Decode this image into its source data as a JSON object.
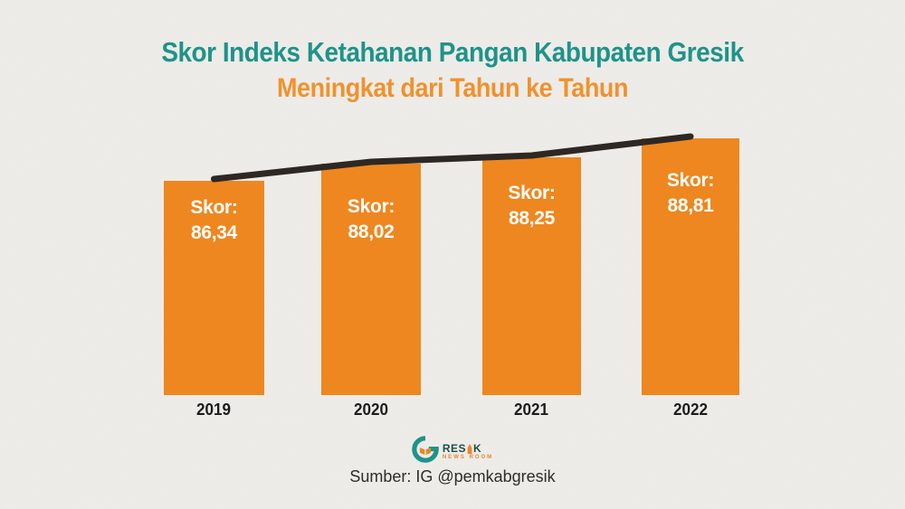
{
  "title": {
    "line1": "Skor Indeks Ketahanan Pangan Kabupaten Gresik",
    "line2": "Meningkat dari Tahun ke Tahun"
  },
  "chart_data": {
    "type": "bar",
    "categories": [
      "2019",
      "2020",
      "2021",
      "2022"
    ],
    "values": [
      86.34,
      88.02,
      88.25,
      88.81
    ],
    "value_labels": [
      "86,34",
      "88,02",
      "88,25",
      "88,81"
    ],
    "value_prefix": "Skor:",
    "title": "Skor Indeks Ketahanan Pangan Kabupaten Gresik Meningkat dari Tahun ke Tahun",
    "xlabel": "",
    "ylabel": "",
    "legend": false,
    "grid": false,
    "ylim_visual_note": "bar heights not to linear scale; infographic style",
    "overlay_line": {
      "type": "line",
      "description": "black trend line connecting bar tops",
      "values": [
        86.34,
        88.02,
        88.25,
        88.81
      ]
    },
    "bar_color": "#EE871F",
    "line_color": "#2D2824",
    "bar_label_color": "#FFFFFF",
    "category_label_color": "#1E1C1A"
  },
  "colors": {
    "teal": "#1E9389",
    "title-orange": "#F0922D",
    "bar-orange": "#EE871F",
    "line-dark": "#2D2824",
    "paper": "#EFEDE9",
    "logo-dark": "#1E4E49",
    "logo-orange": "#E8872A"
  },
  "footer": {
    "source": "Sumber: IG @pemkabgresik",
    "logo": {
      "text_left": "RES",
      "text_right": "K",
      "subtext": "NEWS ROOM"
    }
  }
}
